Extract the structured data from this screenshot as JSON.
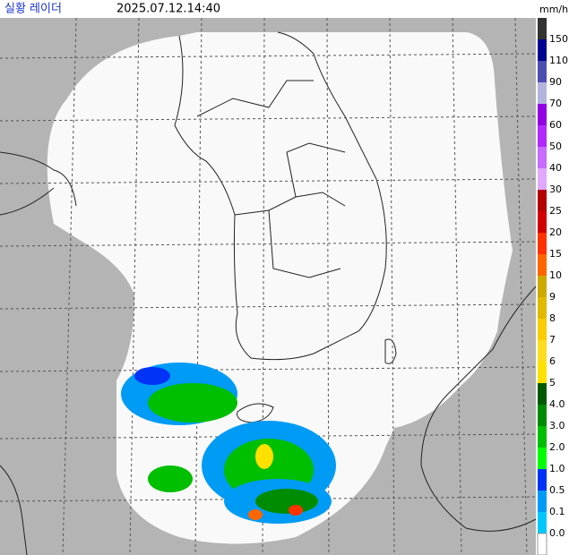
{
  "header": {
    "title": "실황 레이더",
    "time": "2025.07.12.14:40",
    "unit": "mm/h"
  },
  "legend": {
    "items": [
      {
        "label": "150",
        "color": "#333333"
      },
      {
        "label": "110",
        "color": "#000390"
      },
      {
        "label": "90",
        "color": "#4c4eb1"
      },
      {
        "label": "70",
        "color": "#b3b4de"
      },
      {
        "label": "60",
        "color": "#9300e4"
      },
      {
        "label": "50",
        "color": "#b229ff"
      },
      {
        "label": "40",
        "color": "#c86bff"
      },
      {
        "label": "30",
        "color": "#e0a9ff"
      },
      {
        "label": "25",
        "color": "#b40000"
      },
      {
        "label": "20",
        "color": "#d20000"
      },
      {
        "label": "15",
        "color": "#ff3200"
      },
      {
        "label": "10",
        "color": "#ff6600"
      },
      {
        "label": "9",
        "color": "#ccaa00"
      },
      {
        "label": "8",
        "color": "#e0b900"
      },
      {
        "label": "7",
        "color": "#f9cd00"
      },
      {
        "label": "6",
        "color": "#ffdc1f"
      },
      {
        "label": "5",
        "color": "#ffe100"
      },
      {
        "label": "4.0",
        "color": "#005a00"
      },
      {
        "label": "3.0",
        "color": "#008c00"
      },
      {
        "label": "2.0",
        "color": "#00be00"
      },
      {
        "label": "1.0",
        "color": "#00ff00"
      },
      {
        "label": "0.5",
        "color": "#0033f5"
      },
      {
        "label": "0.1",
        "color": "#009bf5"
      },
      {
        "label": "0.0",
        "color": "#00c8ff"
      }
    ],
    "bottom_color": "#ffffff"
  }
}
